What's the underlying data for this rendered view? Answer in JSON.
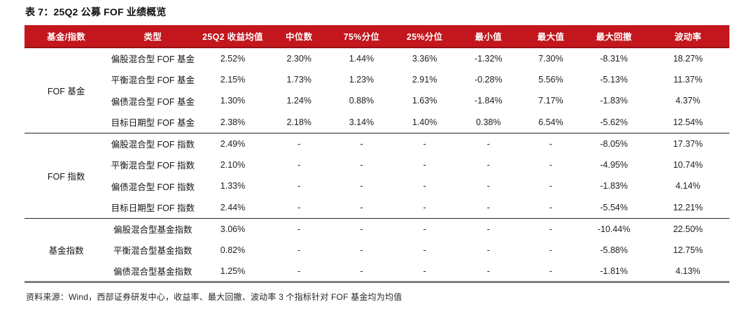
{
  "title": "表 7：25Q2 公募 FOF 业绩概览",
  "footnote": "资料来源：Wind，西部证券研发中心，收益率、最大回撤、波动率 3 个指标针对 FOF 基金均为均值",
  "colors": {
    "header_bg": "#C3161D",
    "header_edge": "#991016",
    "header_text": "#FFFFFF",
    "separator_line": "#262626",
    "bottom_line": "#7F7F7F"
  },
  "table": {
    "columns": [
      "基金/指数",
      "类型",
      "25Q2 收益均值",
      "中位数",
      "75%分位",
      "25%分位",
      "最小值",
      "最大值",
      "最大回撤",
      "波动率"
    ],
    "column_widths_pct": [
      11.84,
      12.73,
      9.95,
      8.86,
      8.86,
      9.05,
      9.05,
      8.66,
      9.25,
      11.75
    ],
    "groups": [
      {
        "label": "FOF 基金",
        "rows": [
          {
            "type": "偏股混合型 FOF 基金",
            "values": [
              "2.52%",
              "2.30%",
              "1.44%",
              "3.36%",
              "-1.32%",
              "7.30%",
              "-8.31%",
              "18.27%"
            ]
          },
          {
            "type": "平衡混合型 FOF 基金",
            "values": [
              "2.15%",
              "1.73%",
              "1.23%",
              "2.91%",
              "-0.28%",
              "5.56%",
              "-5.13%",
              "11.37%"
            ]
          },
          {
            "type": "偏债混合型 FOF 基金",
            "values": [
              "1.30%",
              "1.24%",
              "0.88%",
              "1.63%",
              "-1.84%",
              "7.17%",
              "-1.83%",
              "4.37%"
            ]
          },
          {
            "type": "目标日期型 FOF 基金",
            "values": [
              "2.38%",
              "2.18%",
              "3.14%",
              "1.40%",
              "0.38%",
              "6.54%",
              "-5.62%",
              "12.54%"
            ]
          }
        ]
      },
      {
        "label": "FOF 指数",
        "rows": [
          {
            "type": "偏股混合型 FOF 指数",
            "values": [
              "2.49%",
              "-",
              "-",
              "-",
              "-",
              "-",
              "-8.05%",
              "17.37%"
            ]
          },
          {
            "type": "平衡混合型 FOF 指数",
            "values": [
              "2.10%",
              "-",
              "-",
              "-",
              "-",
              "-",
              "-4.95%",
              "10.74%"
            ]
          },
          {
            "type": "偏债混合型 FOF 指数",
            "values": [
              "1.33%",
              "-",
              "-",
              "-",
              "-",
              "-",
              "-1.83%",
              "4.14%"
            ]
          },
          {
            "type": "目标日期型 FOF 指数",
            "values": [
              "2.44%",
              "-",
              "-",
              "-",
              "-",
              "-",
              "-5.54%",
              "12.21%"
            ]
          }
        ]
      },
      {
        "label": "基金指数",
        "rows": [
          {
            "type": "偏股混合型基金指数",
            "values": [
              "3.06%",
              "-",
              "-",
              "-",
              "-",
              "-",
              "-10.44%",
              "22.50%"
            ]
          },
          {
            "type": "平衡混合型基金指数",
            "values": [
              "0.82%",
              "-",
              "-",
              "-",
              "-",
              "-",
              "-5.88%",
              "12.75%"
            ]
          },
          {
            "type": "偏债混合型基金指数",
            "values": [
              "1.25%",
              "-",
              "-",
              "-",
              "-",
              "-",
              "-1.81%",
              "4.13%"
            ]
          }
        ]
      }
    ]
  }
}
